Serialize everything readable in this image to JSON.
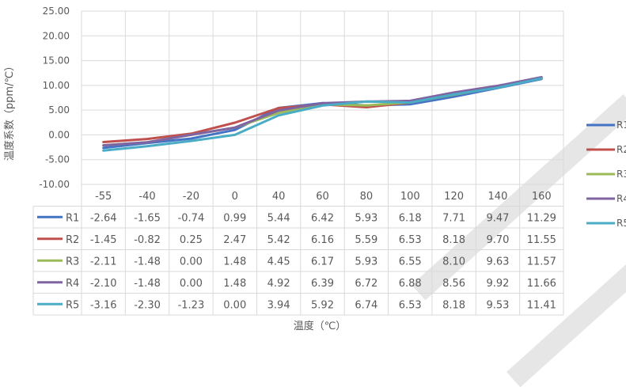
{
  "chart_data": {
    "type": "line",
    "title": "",
    "xlabel": "温度（℃）",
    "ylabel": "温度系数（ppm/℃）",
    "categories": [
      "-55",
      "-40",
      "-20",
      "0",
      "40",
      "60",
      "80",
      "100",
      "120",
      "140",
      "160"
    ],
    "y_ticks": [
      "25.00",
      "20.00",
      "15.00",
      "10.00",
      "5.00",
      "0.00",
      "-5.00",
      "-10.00"
    ],
    "ylim": [
      -10,
      25
    ],
    "grid": true,
    "legend_position": "right",
    "data_table": true,
    "series": [
      {
        "name": "R1",
        "color": "#4472C4",
        "values": [
          -2.64,
          -1.65,
          -0.74,
          0.99,
          5.44,
          6.42,
          5.93,
          6.18,
          7.71,
          9.47,
          11.29
        ],
        "labels": [
          "-2.64",
          "-1.65",
          "-0.74",
          "0.99",
          "5.44",
          "6.42",
          "5.93",
          "6.18",
          "7.71",
          "9.47",
          "11.29"
        ]
      },
      {
        "name": "R2",
        "color": "#C0504D",
        "values": [
          -1.45,
          -0.82,
          0.25,
          2.47,
          5.42,
          6.16,
          5.59,
          6.53,
          8.18,
          9.7,
          11.55
        ],
        "labels": [
          "-1.45",
          "-0.82",
          "0.25",
          "2.47",
          "5.42",
          "6.16",
          "5.59",
          "6.53",
          "8.18",
          "9.70",
          "11.55"
        ]
      },
      {
        "name": "R3",
        "color": "#9BBB59",
        "values": [
          -2.11,
          -1.48,
          0.0,
          1.48,
          4.45,
          6.17,
          5.93,
          6.55,
          8.1,
          9.63,
          11.57
        ],
        "labels": [
          "-2.11",
          "-1.48",
          "0.00",
          "1.48",
          "4.45",
          "6.17",
          "5.93",
          "6.55",
          "8.10",
          "9.63",
          "11.57"
        ]
      },
      {
        "name": "R4",
        "color": "#8064A2",
        "values": [
          -2.1,
          -1.48,
          0.0,
          1.48,
          4.92,
          6.39,
          6.72,
          6.88,
          8.56,
          9.92,
          11.66
        ],
        "labels": [
          "-2.10",
          "-1.48",
          "0.00",
          "1.48",
          "4.92",
          "6.39",
          "6.72",
          "6.88",
          "8.56",
          "9.92",
          "11.66"
        ]
      },
      {
        "name": "R5",
        "color": "#4BACC6",
        "values": [
          -3.16,
          -2.3,
          -1.23,
          0.0,
          3.94,
          5.92,
          6.74,
          6.53,
          8.18,
          9.53,
          11.41
        ],
        "labels": [
          "-3.16",
          "-2.30",
          "-1.23",
          "0.00",
          "3.94",
          "5.92",
          "6.74",
          "6.53",
          "8.18",
          "9.53",
          "11.41"
        ]
      }
    ]
  }
}
